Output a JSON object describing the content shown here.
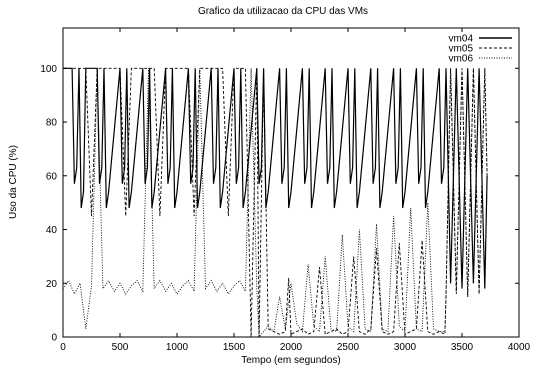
{
  "chart_data": {
    "type": "line",
    "title": "Grafico da utilizacao da CPU das VMs",
    "xlabel": "Tempo (em segundos)",
    "ylabel": "Uso da CPU (%)",
    "xlim": [
      0,
      4000
    ],
    "ylim": [
      0,
      115
    ],
    "x_ticks": [
      "0",
      "500",
      "1000",
      "1500",
      "2000",
      "2500",
      "3000",
      "3500",
      "4000"
    ],
    "y_ticks": [
      "0",
      "20",
      "40",
      "60",
      "80",
      "100"
    ],
    "x_tick_values": [
      0,
      500,
      1000,
      1500,
      2000,
      2500,
      3000,
      3500,
      4000
    ],
    "y_tick_values": [
      0,
      20,
      40,
      60,
      80,
      100
    ],
    "grid": false,
    "legend_position": "top-right",
    "series": [
      {
        "name": "vm04",
        "style": "solid",
        "description": "Saturated at 100% with periodic dips to 45-65% roughly every 200 s until ~3350 s, then oscillates 15-100%.",
        "x": [
          0,
          80,
          100,
          120,
          140,
          160,
          180,
          200,
          300,
          320,
          340,
          360,
          380,
          400,
          500,
          520,
          540,
          560,
          580,
          600,
          700,
          720,
          740,
          760,
          780,
          800,
          900,
          920,
          940,
          960,
          980,
          1000,
          1100,
          1120,
          1140,
          1160,
          1180,
          1200,
          1300,
          1320,
          1340,
          1360,
          1380,
          1400,
          1500,
          1520,
          1540,
          1560,
          1580,
          1600,
          1700,
          1720,
          1740,
          1760,
          1780,
          1800,
          1900,
          1920,
          1940,
          1960,
          1980,
          2000,
          2100,
          2120,
          2140,
          2160,
          2180,
          2200,
          2300,
          2320,
          2340,
          2360,
          2380,
          2400,
          2500,
          2520,
          2540,
          2560,
          2580,
          2600,
          2700,
          2720,
          2740,
          2760,
          2780,
          2800,
          2900,
          2920,
          2940,
          2960,
          2980,
          3000,
          3100,
          3120,
          3140,
          3160,
          3180,
          3200,
          3300,
          3320,
          3340,
          3360,
          3400,
          3450,
          3500,
          3550,
          3600,
          3650,
          3700,
          3720
        ],
        "values": [
          100,
          100,
          57,
          63,
          100,
          48,
          54,
          100,
          100,
          57,
          63,
          100,
          48,
          54,
          100,
          57,
          63,
          100,
          48,
          54,
          100,
          57,
          63,
          100,
          48,
          54,
          100,
          57,
          63,
          100,
          48,
          54,
          100,
          57,
          63,
          100,
          48,
          54,
          100,
          57,
          63,
          100,
          48,
          54,
          100,
          57,
          63,
          100,
          48,
          54,
          100,
          57,
          63,
          100,
          48,
          54,
          100,
          57,
          63,
          100,
          48,
          54,
          100,
          57,
          63,
          100,
          48,
          54,
          100,
          57,
          63,
          100,
          48,
          54,
          100,
          57,
          63,
          100,
          48,
          54,
          100,
          57,
          63,
          100,
          48,
          54,
          100,
          57,
          63,
          100,
          48,
          54,
          100,
          57,
          63,
          100,
          48,
          54,
          100,
          57,
          63,
          100,
          20,
          100,
          18,
          100,
          20,
          100,
          18,
          60
        ]
      },
      {
        "name": "vm05",
        "style": "dashed",
        "description": "Saturated at 100% with narrow drops to ~45% and spikes to 0% around 1700-1800 s; near 1-5% from ~1800 s to ~3350 s with spikes; oscillates 15-100% after ~3350 s.",
        "x": [
          0,
          100,
          150,
          200,
          250,
          300,
          350,
          400,
          450,
          500,
          550,
          600,
          650,
          700,
          750,
          800,
          850,
          900,
          950,
          1000,
          1050,
          1100,
          1150,
          1200,
          1250,
          1300,
          1350,
          1400,
          1450,
          1500,
          1550,
          1600,
          1650,
          1700,
          1720,
          1760,
          1800,
          1850,
          1900,
          1950,
          1980,
          2000,
          2050,
          2100,
          2150,
          2200,
          2250,
          2300,
          2350,
          2400,
          2450,
          2500,
          2550,
          2600,
          2650,
          2700,
          2750,
          2800,
          2850,
          2900,
          2950,
          3000,
          3050,
          3100,
          3150,
          3200,
          3250,
          3300,
          3350,
          3360,
          3400,
          3450,
          3500,
          3550,
          3600,
          3650,
          3700,
          3720
        ],
        "values": [
          100,
          100,
          100,
          100,
          45,
          100,
          100,
          100,
          100,
          100,
          45,
          100,
          100,
          100,
          100,
          100,
          45,
          100,
          100,
          100,
          100,
          100,
          45,
          100,
          100,
          100,
          100,
          100,
          45,
          100,
          100,
          100,
          0,
          100,
          0,
          100,
          3,
          2,
          1,
          2,
          22,
          1,
          2,
          3,
          1,
          2,
          26,
          1,
          2,
          3,
          1,
          2,
          30,
          2,
          1,
          3,
          33,
          2,
          1,
          2,
          35,
          1,
          2,
          3,
          36,
          2,
          1,
          2,
          1,
          15,
          100,
          16,
          100,
          15,
          100,
          16,
          100,
          60
        ]
      },
      {
        "name": "vm06",
        "style": "dotted",
        "description": "Oscillates around 15-22% until ~1750 s with rare spikes to 100%; spikes after 1800 s growing from ~20% to ~50% while baseline stays near 0-5%; oscillates 15-100% after ~3350 s.",
        "x": [
          0,
          50,
          100,
          150,
          200,
          250,
          300,
          350,
          400,
          450,
          500,
          550,
          600,
          650,
          700,
          750,
          800,
          850,
          900,
          950,
          1000,
          1050,
          1100,
          1150,
          1200,
          1250,
          1300,
          1350,
          1400,
          1450,
          1500,
          1550,
          1600,
          1650,
          1700,
          1720,
          1760,
          1800,
          1850,
          1900,
          1950,
          2000,
          2050,
          2100,
          2150,
          2200,
          2250,
          2300,
          2350,
          2400,
          2450,
          2500,
          2550,
          2600,
          2650,
          2700,
          2750,
          2800,
          2850,
          2900,
          2950,
          3000,
          3050,
          3100,
          3150,
          3200,
          3250,
          3300,
          3350,
          3360,
          3400,
          3450,
          3500,
          3550,
          3600,
          3650,
          3700,
          3720
        ],
        "values": [
          18,
          21,
          16,
          20,
          3,
          19,
          100,
          18,
          21,
          17,
          20,
          16,
          19,
          21,
          17,
          100,
          18,
          21,
          17,
          20,
          16,
          19,
          21,
          17,
          100,
          18,
          21,
          17,
          20,
          16,
          19,
          21,
          17,
          100,
          18,
          0,
          2,
          4,
          2,
          15,
          3,
          20,
          5,
          2,
          27,
          4,
          2,
          30,
          3,
          2,
          38,
          4,
          2,
          40,
          3,
          2,
          42,
          3,
          2,
          45,
          4,
          2,
          48,
          3,
          2,
          50,
          3,
          2,
          2,
          15,
          100,
          17,
          100,
          15,
          100,
          16,
          100,
          60
        ]
      }
    ]
  }
}
